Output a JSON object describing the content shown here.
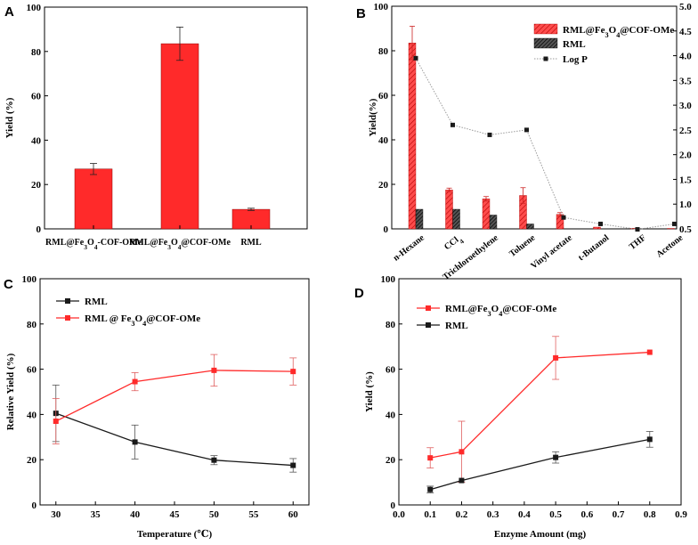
{
  "colors": {
    "red": "#ff2a2a",
    "black": "#1a1a1a",
    "gray": "#9a9a9a",
    "axis": "#000000"
  },
  "chart_data": [
    {
      "panel": "A",
      "type": "bar",
      "categories": [
        "RML@Fe3O4-COF-OMe",
        "RML@Fe3O4@COF-OMe",
        "RML"
      ],
      "category_labels": [
        [
          "RML@Fe",
          "3",
          "O",
          "4",
          "-COF-OMe"
        ],
        [
          "RML@Fe",
          "3",
          "O",
          "4",
          "@COF-OMe"
        ],
        [
          "RML"
        ]
      ],
      "values": [
        27,
        83.5,
        8.8
      ],
      "errors": [
        2.5,
        7.5,
        0.5
      ],
      "ylabel": "Yield (%)",
      "ylim": [
        0,
        100
      ],
      "yticks": [
        0,
        20,
        40,
        60,
        80,
        100
      ]
    },
    {
      "panel": "B",
      "type": "bar",
      "categories": [
        "n-Hexane",
        "CCl4",
        "Trichloroethylene",
        "Toluene",
        "Vinyl acetate",
        "t-Butanol",
        "THF",
        "Acetone"
      ],
      "category_labels": [
        [
          "n-Hexane"
        ],
        [
          "CCl",
          "4"
        ],
        [
          "Trichloroethylene"
        ],
        [
          "Toluene"
        ],
        [
          "Vinyl acetate"
        ],
        [
          "t-Butanol"
        ],
        [
          "THF"
        ],
        [
          "Acetone"
        ]
      ],
      "ylabel": "Yield(%)",
      "ylim": [
        0,
        100
      ],
      "yticks": [
        0,
        20,
        40,
        60,
        80,
        100
      ],
      "y2lim": [
        0.5,
        5.0
      ],
      "y2ticks": [
        "0.5",
        "1.0",
        "1.5",
        "2.0",
        "2.5",
        "3.0",
        "3.5",
        "4.0",
        "4.5",
        "5.0"
      ],
      "series": [
        {
          "name": "RML@Fe3O4@COF-OMe",
          "label": [
            "RML@Fe",
            "3",
            "O",
            "4",
            "@COF-OMe"
          ],
          "values": [
            83.5,
            17.5,
            13.5,
            15,
            6.5,
            0.8,
            0.3,
            0.2
          ],
          "errors": [
            7.5,
            0.8,
            1.0,
            3.5,
            0.8,
            0,
            0,
            0
          ]
        },
        {
          "name": "RML",
          "label": [
            "RML"
          ],
          "values": [
            8.8,
            8.8,
            6.2,
            2.2,
            0,
            0,
            0,
            0
          ],
          "errors": [
            0,
            0,
            0,
            0,
            0,
            0,
            0,
            0
          ]
        },
        {
          "name": "Log P",
          "label": [
            "Log P"
          ],
          "axis": "right",
          "values": [
            3.95,
            2.6,
            2.4,
            2.5,
            0.73,
            0.6,
            0.49,
            0.6
          ]
        }
      ]
    },
    {
      "panel": "C",
      "type": "line",
      "x": [
        30,
        40,
        50,
        60
      ],
      "xlabel": "Temperature (℃)",
      "ylabel": "Relative Yield (%)",
      "xlim": [
        28,
        62
      ],
      "ylim": [
        0,
        100
      ],
      "xticks": [
        30,
        35,
        40,
        45,
        50,
        55,
        60
      ],
      "yticks": [
        0,
        20,
        40,
        60,
        80,
        100
      ],
      "series": [
        {
          "name": "RML",
          "label": [
            "RML"
          ],
          "values": [
            40.5,
            27.8,
            19.8,
            17.5
          ],
          "errors": [
            12.5,
            7.5,
            2,
            3
          ]
        },
        {
          "name": "RML @ Fe3O4@COF-OMe",
          "label": [
            "RML @ Fe",
            "3",
            "O",
            "4",
            "@COF-OMe"
          ],
          "values": [
            37,
            54.5,
            59.5,
            59
          ],
          "errors": [
            10,
            4,
            7,
            6
          ]
        }
      ]
    },
    {
      "panel": "D",
      "type": "line",
      "x": [
        0.1,
        0.2,
        0.5,
        0.8
      ],
      "xlabel": "Enzyme Amount (mg)",
      "ylabel": "Yield (%)",
      "xlim": [
        0.0,
        0.9
      ],
      "ylim": [
        0,
        100
      ],
      "xticks": [
        "0.0",
        "0.1",
        "0.2",
        "0.3",
        "0.4",
        "0.5",
        "0.6",
        "0.7",
        "0.8",
        "0.9"
      ],
      "yticks": [
        0,
        20,
        40,
        60,
        80,
        100
      ],
      "series": [
        {
          "name": "RML@Fe3O4@COF-OMe",
          "label": [
            "RML@Fe",
            "3",
            "O",
            "4",
            "@COF-OMe"
          ],
          "values": [
            20.8,
            23.5,
            65,
            67.5
          ],
          "errors": [
            4.5,
            13.5,
            9.5,
            0
          ]
        },
        {
          "name": "RML",
          "label": [
            "RML"
          ],
          "values": [
            6.8,
            10.8,
            21,
            29
          ],
          "errors": [
            1.5,
            0,
            2.5,
            3.5
          ]
        }
      ]
    }
  ]
}
